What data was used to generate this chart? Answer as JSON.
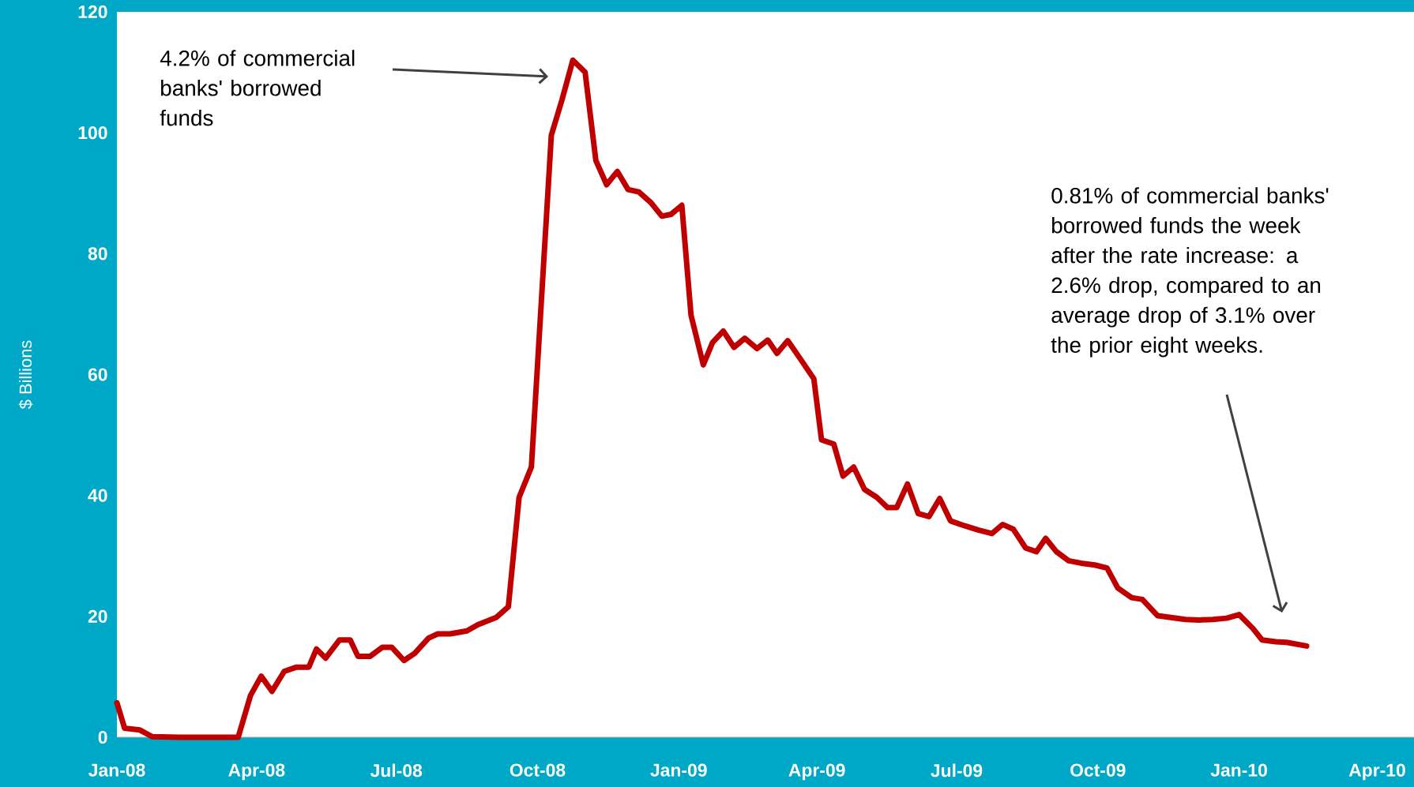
{
  "chart_data": {
    "type": "line",
    "ylabel": "$ Billions",
    "x": [
      "2008-01-01",
      "2008-01-06",
      "2008-01-16",
      "2008-01-24",
      "2008-02-11",
      "2008-03-06",
      "2008-03-20",
      "2008-03-28",
      "2008-04-04",
      "2008-04-11",
      "2008-04-19",
      "2008-04-27",
      "2008-05-05",
      "2008-05-10",
      "2008-05-16",
      "2008-05-25",
      "2008-06-01",
      "2008-06-06",
      "2008-06-14",
      "2008-06-22",
      "2008-06-28",
      "2008-07-06",
      "2008-07-13",
      "2008-07-22",
      "2008-07-28",
      "2008-08-05",
      "2008-08-16",
      "2008-08-23",
      "2008-09-04",
      "2008-09-12",
      "2008-09-19",
      "2008-09-27",
      "2008-10-10",
      "2008-10-17",
      "2008-10-24",
      "2008-11-01",
      "2008-11-08",
      "2008-11-15",
      "2008-11-22",
      "2008-11-29",
      "2008-12-06",
      "2008-12-14",
      "2008-12-21",
      "2008-12-27",
      "2009-01-03",
      "2009-01-09",
      "2009-01-17",
      "2009-01-23",
      "2009-01-30",
      "2009-02-06",
      "2009-02-13",
      "2009-02-21",
      "2009-02-28",
      "2009-03-06",
      "2009-03-13",
      "2009-03-22",
      "2009-03-30",
      "2009-04-04",
      "2009-04-12",
      "2009-04-18",
      "2009-04-25",
      "2009-05-02",
      "2009-05-10",
      "2009-05-17",
      "2009-05-23",
      "2009-05-30",
      "2009-06-06",
      "2009-06-13",
      "2009-06-20",
      "2009-06-27",
      "2009-07-06",
      "2009-07-15",
      "2009-07-24",
      "2009-07-31",
      "2009-08-07",
      "2009-08-15",
      "2009-08-22",
      "2009-08-28",
      "2009-09-04",
      "2009-09-12",
      "2009-09-20",
      "2009-09-29",
      "2009-10-07",
      "2009-10-14",
      "2009-10-23",
      "2009-10-30",
      "2009-11-09",
      "2009-11-18",
      "2009-11-27",
      "2009-12-06",
      "2009-12-15",
      "2009-12-24",
      "2010-01-01",
      "2010-01-10",
      "2010-01-16",
      "2010-01-25",
      "2010-02-01",
      "2010-02-14"
    ],
    "values": [
      5.7,
      1.5,
      1.2,
      0.1,
      0,
      0,
      0,
      6.9,
      10.1,
      7.6,
      10.9,
      11.6,
      11.6,
      14.6,
      13.1,
      16.1,
      16.1,
      13.4,
      13.4,
      14.9,
      14.9,
      12.7,
      13.9,
      16.4,
      17.1,
      17.1,
      17.6,
      18.6,
      19.8,
      21.6,
      39.7,
      44.7,
      99.6,
      105.5,
      112,
      110,
      95.4,
      91.4,
      93.6,
      90.6,
      90.2,
      88.4,
      86.2,
      86.5,
      88,
      69.8,
      61.6,
      65.3,
      67.2,
      64.5,
      66,
      64.3,
      65.7,
      63.5,
      65.6,
      62.3,
      59.3,
      49.2,
      48.5,
      43.2,
      44.7,
      41,
      39.7,
      38,
      38,
      41.9,
      37,
      36.5,
      39.5,
      35.8,
      35,
      34.3,
      33.7,
      35.2,
      34.4,
      31.3,
      30.7,
      32.9,
      30.7,
      29.2,
      28.8,
      28.5,
      28,
      24.7,
      23.1,
      22.8,
      20.1,
      19.8,
      19.5,
      19.4,
      19.5,
      19.7,
      20.3,
      18,
      16.1,
      15.8,
      15.7,
      15.1
    ],
    "color": "#c00000",
    "xlim": [
      "2008-01-01",
      "2010-04-25"
    ],
    "xticks": [
      {
        "value": "2008-01-01",
        "label": "Jan-08"
      },
      {
        "value": "2008-04-01",
        "label": "Apr-08"
      },
      {
        "value": "2008-07-01",
        "label": "Jul-08"
      },
      {
        "value": "2008-10-01",
        "label": "Oct-08"
      },
      {
        "value": "2009-01-01",
        "label": "Jan-09"
      },
      {
        "value": "2009-04-01",
        "label": "Apr-09"
      },
      {
        "value": "2009-07-01",
        "label": "Jul-09"
      },
      {
        "value": "2009-10-01",
        "label": "Oct-09"
      },
      {
        "value": "2010-01-01",
        "label": "Jan-10"
      },
      {
        "value": "2010-04-01",
        "label": "Apr-10"
      }
    ],
    "ylim": [
      0,
      120
    ],
    "yticks": [
      0,
      20,
      40,
      60,
      80,
      100,
      120
    ],
    "annotations": [
      "4.2% of commercial banks' borrowed funds",
      "0.81% of commercial banks' borrowed funds the week after the rate increase: a 2.6% drop, compared to an average drop of 3.1% over the prior eight weeks."
    ]
  }
}
